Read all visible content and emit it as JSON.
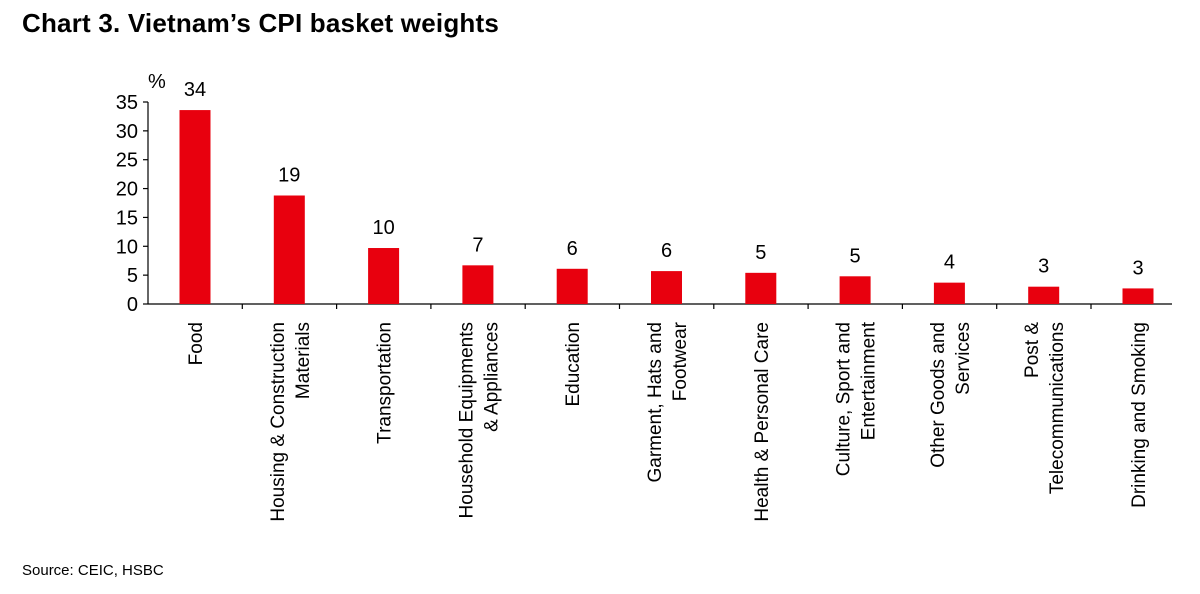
{
  "title": "Chart 3. Vietnam’s CPI basket weights",
  "source": "Source: CEIC, HSBC",
  "chart_data": {
    "type": "bar",
    "title": "Chart 3. Vietnam’s CPI basket weights",
    "ylabel": "%",
    "xlabel": "",
    "ylim": [
      0,
      35
    ],
    "yticks": [
      0,
      5,
      10,
      15,
      20,
      25,
      30,
      35
    ],
    "grid": false,
    "bar_color": "#e8000e",
    "categories": [
      [
        "Food"
      ],
      [
        "Housing & Construction",
        "Materials"
      ],
      [
        "Transportation"
      ],
      [
        "Household Equipments",
        "& Appliances"
      ],
      [
        "Education"
      ],
      [
        "Garment, Hats and",
        "Footwear"
      ],
      [
        "Health & Personal Care"
      ],
      [
        "Culture, Sport and",
        "Entertainment"
      ],
      [
        "Other Goods and",
        "Services"
      ],
      [
        "Post &",
        "Telecommunications"
      ],
      [
        "Drinking and Smoking"
      ]
    ],
    "values": [
      33.6,
      18.8,
      9.7,
      6.7,
      6.1,
      5.7,
      5.4,
      4.8,
      3.7,
      3.0,
      2.7
    ],
    "data_labels": [
      "34",
      "19",
      "10",
      "7",
      "6",
      "6",
      "5",
      "5",
      "4",
      "3",
      "3"
    ]
  }
}
